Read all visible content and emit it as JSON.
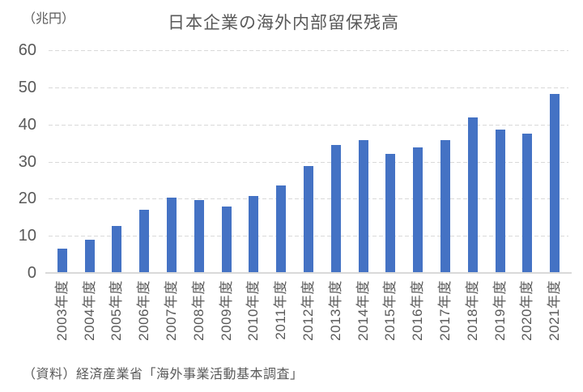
{
  "chart_data": {
    "type": "bar",
    "title": "日本企業の海外内部留保残高",
    "unit_label": "（兆円）",
    "source_note": "（資料）経済産業省「海外事業活動基本調査」",
    "categories": [
      "2003年度",
      "2004年度",
      "2005年度",
      "2006年度",
      "2007年度",
      "2008年度",
      "2009年度",
      "2010年度",
      "2011年度",
      "2012年度",
      "2013年度",
      "2014年度",
      "2015年度",
      "2016年度",
      "2017年度",
      "2018年度",
      "2019年度",
      "2020年度",
      "2021年度"
    ],
    "values": [
      6.5,
      8.9,
      12.6,
      17.1,
      20.2,
      19.6,
      17.9,
      20.8,
      23.6,
      28.8,
      34.5,
      35.8,
      32.1,
      33.8,
      35.7,
      41.9,
      38.6,
      37.5,
      48.3
    ],
    "ylim": [
      0,
      60
    ],
    "yticks": [
      0,
      10,
      20,
      30,
      40,
      50,
      60
    ],
    "grid": "horizontal-dashed",
    "legend": "none",
    "bar_color": "#4472C4",
    "text_color": "#595959",
    "gridline_color": "#D9D9D9"
  }
}
